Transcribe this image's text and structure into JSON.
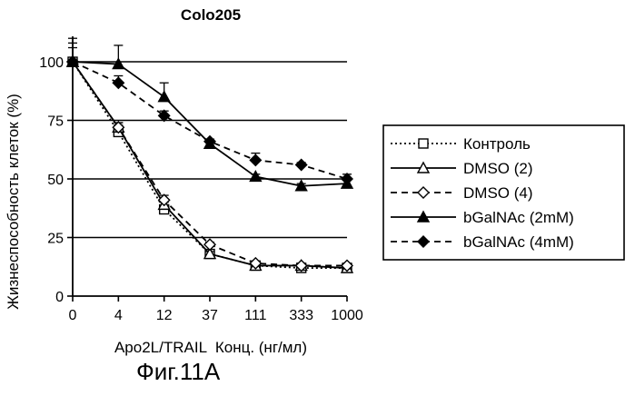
{
  "chart_data": {
    "type": "line",
    "title": "Colo205",
    "xlabel": "Apo2L/TRAIL  Конц. (нг/мл)",
    "ylabel": "Жизнеспособность клеток (%)",
    "categories": [
      "0",
      "4",
      "12",
      "37",
      "111",
      "333",
      "1000"
    ],
    "ylim": [
      0,
      100
    ],
    "yticks": [
      0,
      25,
      50,
      75,
      100
    ],
    "grid": "horizontal",
    "legend_position": "right",
    "series": [
      {
        "name": "Контроль",
        "style": "dotted",
        "marker": "square-dot",
        "values": [
          100,
          70,
          37,
          18,
          13,
          12,
          12
        ],
        "errors": [
          10,
          3,
          3,
          1,
          1,
          1,
          1
        ]
      },
      {
        "name": "DMSO (2)",
        "style": "solid",
        "marker": "open-triangle",
        "values": [
          100,
          72,
          39,
          18,
          13,
          13,
          12
        ],
        "errors": [
          8,
          2,
          2,
          1,
          1,
          1,
          1
        ]
      },
      {
        "name": "DMSO (4)",
        "style": "dashed",
        "marker": "open-diamond",
        "values": [
          100,
          72,
          41,
          22,
          14,
          13,
          13
        ],
        "errors": [
          6,
          2,
          2,
          1,
          1,
          1,
          1
        ]
      },
      {
        "name": "bGalNAc (2mM)",
        "style": "solid",
        "marker": "filled-triangle",
        "values": [
          100,
          99,
          85,
          65,
          51,
          47,
          48
        ],
        "errors": [
          0,
          8,
          6,
          2,
          1,
          1,
          2
        ]
      },
      {
        "name": "bGalNAc (4mM)",
        "style": "dashed",
        "marker": "filled-diamond",
        "values": [
          100,
          91,
          77,
          66,
          58,
          56,
          50
        ],
        "errors": [
          0,
          3,
          2,
          1,
          3,
          1,
          2
        ]
      }
    ]
  },
  "caption": "Фиг.11A"
}
